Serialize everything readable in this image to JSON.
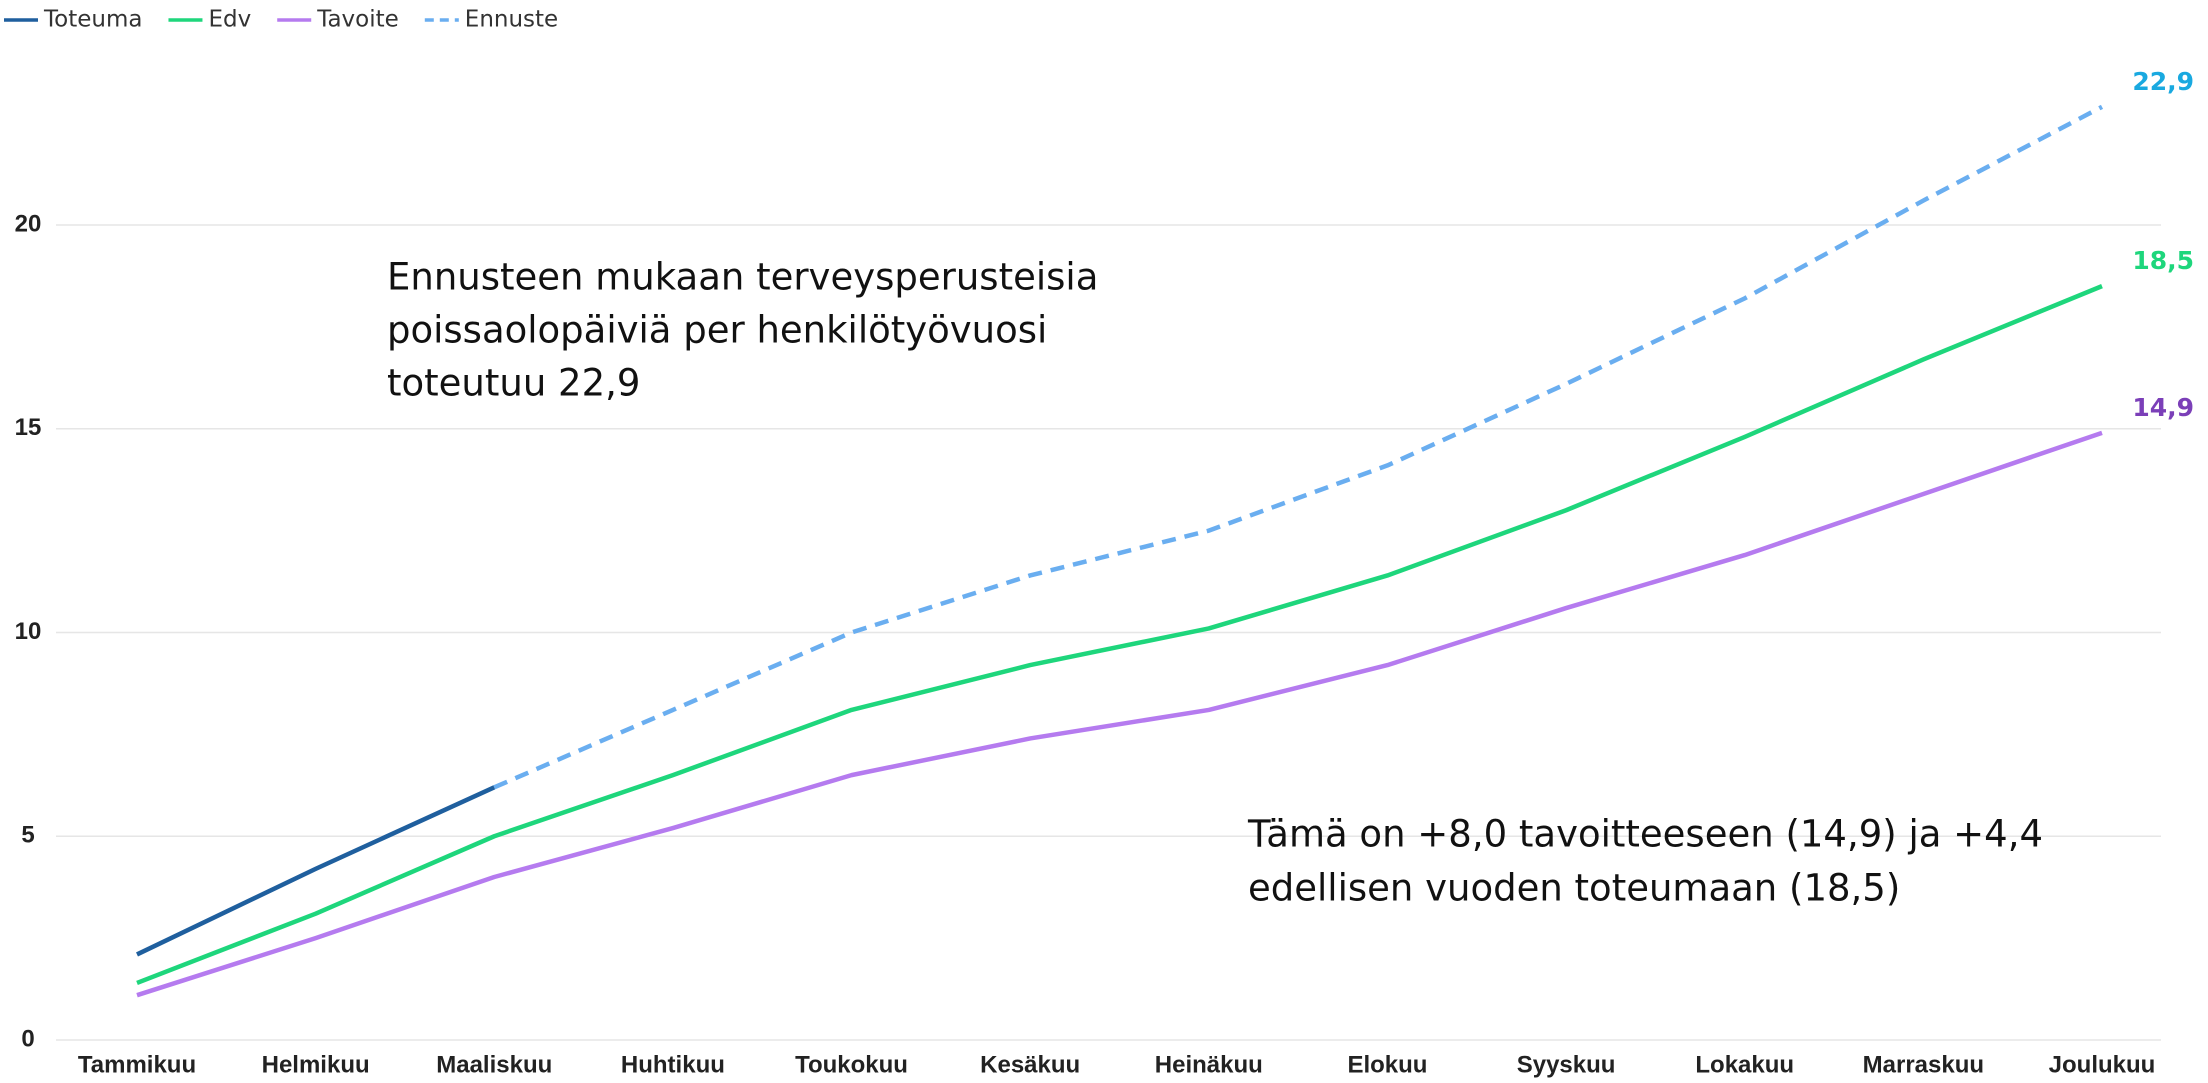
{
  "chart_data": {
    "type": "line",
    "categories": [
      "Tammikuu",
      "Helmikuu",
      "Maaliskuu",
      "Huhtikuu",
      "Toukokuu",
      "Kesäkuu",
      "Heinäkuu",
      "Elokuu",
      "Syyskuu",
      "Lokakuu",
      "Marraskuu",
      "Joulukuu"
    ],
    "ylim": [
      0,
      24
    ],
    "yticks": [
      0,
      5,
      10,
      15,
      20
    ],
    "grid": true,
    "legend": "top-left",
    "series": [
      {
        "name": "Toteuma",
        "color": "#1f5f9e",
        "dashed": false,
        "values": [
          2.1,
          4.2,
          6.2,
          null,
          null,
          null,
          null,
          null,
          null,
          null,
          null,
          null
        ]
      },
      {
        "name": "Edv",
        "color": "#1ed67c",
        "dashed": false,
        "label_color": "#1ed67c",
        "values": [
          1.4,
          3.1,
          5.0,
          6.5,
          8.1,
          9.2,
          10.1,
          11.4,
          13.0,
          14.8,
          16.7,
          18.5
        ],
        "value_labels": [
          null,
          null,
          null,
          null,
          null,
          null,
          null,
          null,
          null,
          null,
          null,
          "18,5"
        ]
      },
      {
        "name": "Tavoite",
        "color": "#b57bef",
        "dashed": false,
        "label_color": "#7b3fb8",
        "values": [
          1.1,
          2.5,
          4.0,
          5.2,
          6.5,
          7.4,
          8.1,
          9.2,
          10.6,
          11.9,
          13.4,
          14.9
        ],
        "value_labels": [
          null,
          null,
          null,
          null,
          null,
          null,
          null,
          null,
          null,
          null,
          null,
          "14,9"
        ]
      },
      {
        "name": "Ennuste",
        "color": "#6aaef0",
        "dashed": true,
        "label_color": "#19a9e0",
        "values": [
          null,
          null,
          6.2,
          8.1,
          10.0,
          11.4,
          12.5,
          14.1,
          16.1,
          18.2,
          20.6,
          22.9
        ],
        "value_labels": [
          null,
          null,
          null,
          null,
          null,
          null,
          null,
          null,
          null,
          null,
          null,
          "22,9"
        ]
      }
    ],
    "annotations": [
      {
        "lines": [
          "Ennusteen mukaan terveysperusteisia",
          "poissaolopäiviä per henkilötyövuosi",
          "toteutuu 22,9"
        ]
      },
      {
        "lines": [
          "Tämä on +8,0 tavoitteeseen (14,9) ja +4,4",
          "edellisen vuoden toteumaan (18,5)"
        ]
      }
    ]
  }
}
